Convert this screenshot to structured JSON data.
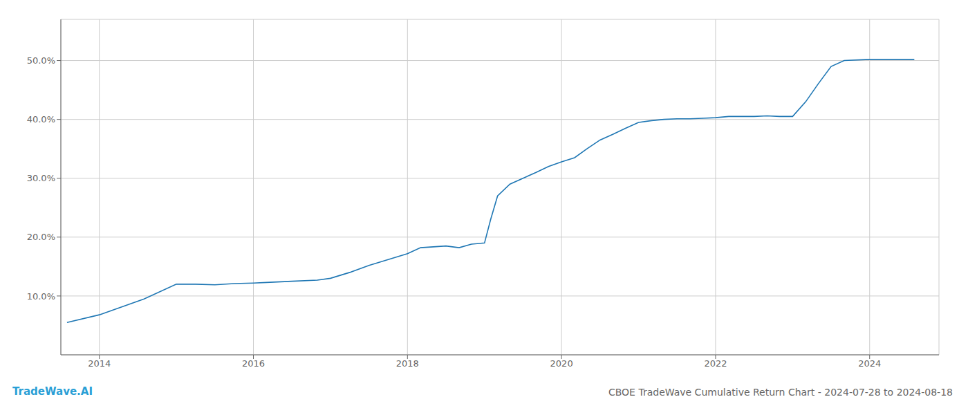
{
  "chart_data": {
    "type": "line",
    "title": "CBOE TradeWave Cumulative Return Chart - 2024-07-28 to 2024-08-18",
    "annotations": [
      "TradeWave.AI"
    ],
    "color": "#1f77b4",
    "grid": true,
    "x": [
      2013.58,
      2014.0,
      2014.58,
      2015.0,
      2015.25,
      2015.5,
      2015.75,
      2016.0,
      2016.17,
      2016.5,
      2016.83,
      2017.0,
      2017.25,
      2017.5,
      2017.75,
      2018.0,
      2018.17,
      2018.5,
      2018.67,
      2018.83,
      2019.0,
      2019.08,
      2019.17,
      2019.33,
      2019.5,
      2019.67,
      2019.83,
      2020.0,
      2020.17,
      2020.33,
      2020.5,
      2020.67,
      2020.83,
      2021.0,
      2021.17,
      2021.33,
      2021.5,
      2021.67,
      2021.83,
      2022.0,
      2022.17,
      2022.5,
      2022.67,
      2022.83,
      2023.0,
      2023.17,
      2023.33,
      2023.5,
      2023.67,
      2024.0,
      2024.17,
      2024.58
    ],
    "values": [
      5.5,
      6.8,
      9.5,
      12.0,
      12.0,
      11.9,
      12.1,
      12.2,
      12.3,
      12.5,
      12.7,
      13.0,
      14.0,
      15.2,
      16.2,
      17.2,
      18.2,
      18.5,
      18.2,
      18.8,
      19.0,
      23.0,
      27.0,
      29.0,
      30.0,
      31.0,
      32.0,
      32.8,
      33.5,
      35.0,
      36.5,
      37.5,
      38.5,
      39.5,
      39.8,
      40.0,
      40.1,
      40.1,
      40.2,
      40.3,
      40.5,
      40.5,
      40.6,
      40.5,
      40.5,
      43.0,
      46.0,
      49.0,
      50.0,
      50.2,
      50.2,
      50.2
    ],
    "xlim": [
      2013.5,
      2024.9
    ],
    "ylim": [
      0,
      57
    ],
    "xticks": [
      2014,
      2016,
      2018,
      2020,
      2022,
      2024
    ],
    "yticks": [
      {
        "value": 10.0,
        "label": "10.0%"
      },
      {
        "value": 20.0,
        "label": "20.0%"
      },
      {
        "value": 30.0,
        "label": "30.0%"
      },
      {
        "value": 40.0,
        "label": "40.0%"
      },
      {
        "value": 50.0,
        "label": "50.0%"
      }
    ]
  }
}
